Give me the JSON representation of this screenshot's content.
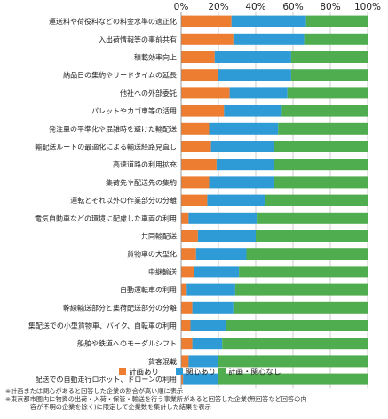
{
  "chart_data": {
    "type": "bar",
    "orientation": "horizontal",
    "stacked": true,
    "percent": true,
    "xlim": [
      0,
      100
    ],
    "xticks": [
      "0%",
      "20%",
      "40%",
      "60%",
      "80%",
      "100%"
    ],
    "grid": true,
    "legend_position": "bottom",
    "categories": [
      "運送料や荷役料などの料金水準の適正化",
      "入出荷情報等の事前共有",
      "積載効率向上",
      "納品日の集約やリードタイムの延長",
      "他社への外部委託",
      "パレットやカゴ車等の活用",
      "発注量の平準化や混雑時を避けた輸配送",
      "輸配送ルートの最適化による輸送経路見直し",
      "高速道路の利用拡充",
      "集荷先や配送先の集約",
      "運転とそれ以外の作業部分の分離",
      "電気自動車などの環境に配慮した車両の利用",
      "共同輸配送",
      "貨物車の大型化",
      "中継輸送",
      "自動運転車の利用",
      "幹線輸送部分と集荷配送部分の分離",
      "集配送での小型貨物車、バイク、自転車の利用",
      "船舶や鉄道へのモーダルシフト",
      "貨客混載",
      "配送での自動走行ロボット、ドローンの利用"
    ],
    "series": [
      {
        "name": "計画あり",
        "color": "#ED7D31",
        "values": [
          27,
          28,
          18,
          20,
          26,
          23,
          15,
          16,
          19,
          15,
          14,
          4,
          9,
          8,
          7,
          3,
          6,
          5,
          6,
          4,
          1
        ]
      },
      {
        "name": "関心あり",
        "color": "#2E9BD6",
        "values": [
          40,
          38,
          41,
          39,
          31,
          31,
          37,
          34,
          31,
          35,
          31,
          37,
          31,
          27,
          24,
          26,
          22,
          19,
          16,
          16,
          19
        ]
      },
      {
        "name": "計画・関心なし",
        "color": "#4FAD4F",
        "values": [
          33,
          34,
          41,
          41,
          43,
          46,
          48,
          50,
          50,
          50,
          55,
          59,
          60,
          65,
          69,
          71,
          72,
          76,
          78,
          80,
          80
        ]
      }
    ]
  },
  "notes": [
    "※計画または関心があると回答した企業の割合が高い順に表示",
    "※東京都市圏内に物資の出荷・入荷・保管・輸送を行う事業所があると回答した企業(無回答など回答の内",
    "容が不明の企業を除く)に限定して企業数を集計した結果を表示"
  ]
}
